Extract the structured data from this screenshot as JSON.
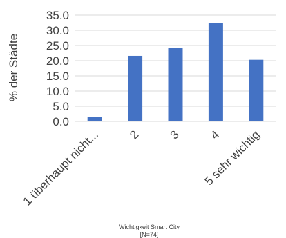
{
  "chart_data": {
    "type": "bar",
    "categories": [
      "1 überhaupt nicht...",
      "2",
      "3",
      "4",
      "5 sehr wichtig"
    ],
    "values": [
      1.4,
      21.6,
      24.3,
      32.4,
      20.3
    ],
    "ylabel": "% der Städte",
    "xlabel": "Wichtigkeit Smart City",
    "xlabel_note": "[N=74]",
    "yticks": [
      "0.0",
      "5.0",
      "10.0",
      "15.0",
      "20.0",
      "25.0",
      "30.0",
      "35.0"
    ],
    "ylim": [
      0,
      35
    ],
    "grid": true,
    "bar_color": "#4472C4",
    "grid_color": "#D9D9D9"
  }
}
